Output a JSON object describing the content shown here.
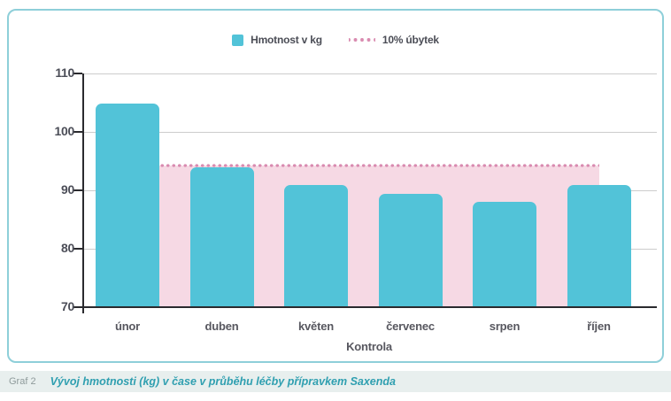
{
  "chart_data": {
    "type": "bar",
    "categories": [
      "únor",
      "duben",
      "květen",
      "červenec",
      "srpen",
      "říjen"
    ],
    "series": [
      {
        "name": "Hmotnost v kg",
        "values": [
          104.8,
          94.0,
          90.9,
          89.4,
          88.1,
          90.9
        ]
      }
    ],
    "threshold": {
      "label": "10% úbytek",
      "value": 94.3,
      "style": "dotted-line",
      "shaded_below": true,
      "span": "from right edge of first bar to center of last bar"
    },
    "title": "",
    "xlabel": "Kontrola",
    "ylabel": "",
    "ylim": [
      70,
      110
    ],
    "yticks": [
      70,
      80,
      90,
      100,
      110
    ],
    "grid": true,
    "legend_position": "top-center"
  },
  "caption": {
    "label": "Graf 2",
    "text": "Vývoj hmotnosti (kg) v čase v průběhu léčby přípravkem Saxenda"
  },
  "colors": {
    "bar": "#52c3d8",
    "shaded_area": "#f6d9e4",
    "dotted_line": "#d98bb0",
    "card_border": "#8ecfd9",
    "gridline": "#cccccc",
    "axis": "#2a2a2e",
    "tick_label": "#4c4e58",
    "caption_text": "#2f9fb0",
    "caption_label": "#8f9b9b",
    "caption_bg": "#e8efee"
  }
}
